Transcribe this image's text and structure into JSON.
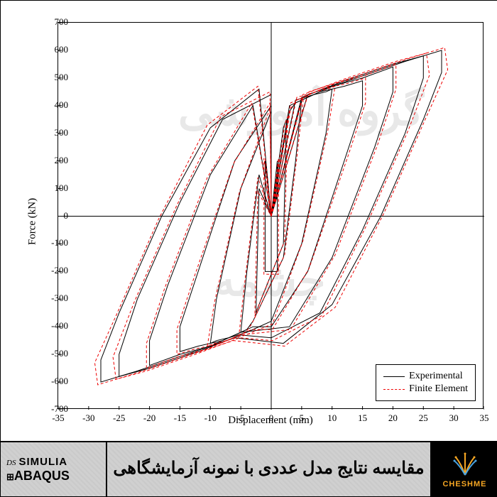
{
  "chart": {
    "type": "line-hysteresis",
    "xlabel": "Displacement (mm)",
    "ylabel": "Force (kN)",
    "xlim": [
      -35,
      35
    ],
    "ylim": [
      -700,
      700
    ],
    "xticks": [
      -35,
      -30,
      -25,
      -20,
      -15,
      -10,
      -5,
      0,
      5,
      10,
      15,
      20,
      25,
      30,
      35
    ],
    "yticks": [
      -700,
      -600,
      -500,
      -400,
      -300,
      -200,
      -100,
      0,
      100,
      200,
      300,
      400,
      500,
      600,
      700
    ],
    "background_color": "#ffffff",
    "border_color": "#000000",
    "tick_fontsize": 13,
    "label_fontsize": 15,
    "series": [
      {
        "name": "Experimental",
        "color": "#000000",
        "style": "solid",
        "width": 1
      },
      {
        "name": "Finite Element",
        "color": "#ee0000",
        "style": "dashed",
        "width": 1
      }
    ],
    "legend_position": "bottom-right",
    "watermark_text1": "گروه آموزشی",
    "watermark_text2": "چشمه",
    "watermark_color": "#e8e8e8",
    "loops_experimental": [
      [
        [
          0,
          0
        ],
        [
          1,
          200
        ],
        [
          1,
          -200
        ],
        [
          -1,
          -200
        ],
        [
          -1,
          200
        ],
        [
          0,
          0
        ]
      ],
      [
        [
          0,
          0
        ],
        [
          2,
          320
        ],
        [
          2.5,
          350
        ],
        [
          2,
          -100
        ],
        [
          -2,
          -320
        ],
        [
          -2.5,
          -350
        ],
        [
          -2,
          100
        ],
        [
          0,
          0
        ]
      ],
      [
        [
          0,
          0
        ],
        [
          3,
          380
        ],
        [
          4,
          410
        ],
        [
          5,
          420
        ],
        [
          4,
          200
        ],
        [
          2,
          -150
        ],
        [
          -3,
          -380
        ],
        [
          -4,
          -410
        ],
        [
          -5,
          -420
        ],
        [
          -4,
          -200
        ],
        [
          -2,
          150
        ],
        [
          0,
          0
        ]
      ],
      [
        [
          0,
          0
        ],
        [
          4,
          420
        ],
        [
          7,
          440
        ],
        [
          9,
          450
        ],
        [
          10,
          460
        ],
        [
          9,
          300
        ],
        [
          5,
          -100
        ],
        [
          0,
          -380
        ],
        [
          -4,
          -420
        ],
        [
          -7,
          -440
        ],
        [
          -9,
          -450
        ],
        [
          -10,
          -460
        ],
        [
          -9,
          -300
        ],
        [
          -5,
          100
        ],
        [
          0,
          380
        ],
        [
          0,
          0
        ]
      ],
      [
        [
          0,
          0
        ],
        [
          3,
          400
        ],
        [
          8,
          450
        ],
        [
          12,
          470
        ],
        [
          15,
          490
        ],
        [
          15,
          400
        ],
        [
          12,
          200
        ],
        [
          6,
          -200
        ],
        [
          0,
          -400
        ],
        [
          -3,
          -400
        ],
        [
          -8,
          -450
        ],
        [
          -12,
          -470
        ],
        [
          -15,
          -490
        ],
        [
          -15,
          -400
        ],
        [
          -12,
          -200
        ],
        [
          -6,
          200
        ],
        [
          0,
          400
        ],
        [
          0,
          0
        ]
      ],
      [
        [
          0,
          0
        ],
        [
          5,
          420
        ],
        [
          10,
          470
        ],
        [
          15,
          500
        ],
        [
          20,
          540
        ],
        [
          20,
          450
        ],
        [
          17,
          250
        ],
        [
          10,
          -150
        ],
        [
          3,
          -400
        ],
        [
          -5,
          -420
        ],
        [
          -10,
          -470
        ],
        [
          -15,
          -500
        ],
        [
          -20,
          -540
        ],
        [
          -20,
          -450
        ],
        [
          -17,
          -250
        ],
        [
          -10,
          150
        ],
        [
          -3,
          400
        ],
        [
          0,
          0
        ]
      ],
      [
        [
          0,
          0
        ],
        [
          5,
          430
        ],
        [
          12,
          490
        ],
        [
          20,
          550
        ],
        [
          25,
          580
        ],
        [
          25,
          500
        ],
        [
          22,
          300
        ],
        [
          15,
          -50
        ],
        [
          8,
          -350
        ],
        [
          0,
          -440
        ],
        [
          -5,
          -430
        ],
        [
          -12,
          -490
        ],
        [
          -20,
          -550
        ],
        [
          -25,
          -580
        ],
        [
          -25,
          -500
        ],
        [
          -22,
          -300
        ],
        [
          -15,
          50
        ],
        [
          -8,
          350
        ],
        [
          0,
          440
        ],
        [
          0,
          0
        ]
      ],
      [
        [
          0,
          0
        ],
        [
          6,
          440
        ],
        [
          14,
          500
        ],
        [
          22,
          560
        ],
        [
          28,
          600
        ],
        [
          28,
          520
        ],
        [
          25,
          350
        ],
        [
          18,
          0
        ],
        [
          10,
          -320
        ],
        [
          2,
          -460
        ],
        [
          -6,
          -440
        ],
        [
          -14,
          -500
        ],
        [
          -22,
          -560
        ],
        [
          -28,
          -600
        ],
        [
          -28,
          -520
        ],
        [
          -25,
          -350
        ],
        [
          -18,
          0
        ],
        [
          -10,
          320
        ],
        [
          -2,
          460
        ],
        [
          0,
          0
        ]
      ]
    ],
    "loops_fe": [
      [
        [
          0,
          0
        ],
        [
          1.2,
          210
        ],
        [
          1.2,
          -210
        ],
        [
          -1.2,
          -210
        ],
        [
          -1.2,
          210
        ],
        [
          0,
          0
        ]
      ],
      [
        [
          0,
          0
        ],
        [
          2.2,
          330
        ],
        [
          2.7,
          360
        ],
        [
          2.2,
          -90
        ],
        [
          -2.2,
          -330
        ],
        [
          -2.7,
          -360
        ],
        [
          -2.2,
          90
        ],
        [
          0,
          0
        ]
      ],
      [
        [
          0,
          0
        ],
        [
          3.2,
          390
        ],
        [
          4.2,
          420
        ],
        [
          5.3,
          430
        ],
        [
          4.2,
          210
        ],
        [
          2.2,
          -140
        ],
        [
          -3.2,
          -390
        ],
        [
          -4.2,
          -420
        ],
        [
          -5.3,
          -430
        ],
        [
          -4.2,
          -210
        ],
        [
          -2.2,
          140
        ],
        [
          0,
          0
        ]
      ],
      [
        [
          0,
          0
        ],
        [
          4.2,
          430
        ],
        [
          7.3,
          450
        ],
        [
          9.3,
          460
        ],
        [
          10.5,
          470
        ],
        [
          9.3,
          310
        ],
        [
          5.2,
          -90
        ],
        [
          0.2,
          -390
        ],
        [
          -4.2,
          -430
        ],
        [
          -7.3,
          -450
        ],
        [
          -9.3,
          -460
        ],
        [
          -10.5,
          -470
        ],
        [
          -9.3,
          -310
        ],
        [
          -5.2,
          90
        ],
        [
          -0.2,
          390
        ],
        [
          0,
          0
        ]
      ],
      [
        [
          0,
          0
        ],
        [
          3.2,
          410
        ],
        [
          8.3,
          460
        ],
        [
          12.5,
          480
        ],
        [
          15.5,
          500
        ],
        [
          15.5,
          410
        ],
        [
          12.5,
          210
        ],
        [
          6.2,
          -190
        ],
        [
          0.2,
          -410
        ],
        [
          -3.2,
          -410
        ],
        [
          -8.3,
          -460
        ],
        [
          -12.5,
          -480
        ],
        [
          -15.5,
          -500
        ],
        [
          -15.5,
          -410
        ],
        [
          -12.5,
          -210
        ],
        [
          -6.2,
          190
        ],
        [
          -0.2,
          410
        ],
        [
          0,
          0
        ]
      ],
      [
        [
          0,
          0
        ],
        [
          5.2,
          430
        ],
        [
          10.5,
          480
        ],
        [
          15.5,
          510
        ],
        [
          20.5,
          550
        ],
        [
          20.5,
          460
        ],
        [
          17.5,
          260
        ],
        [
          10.5,
          -140
        ],
        [
          3.2,
          -410
        ],
        [
          -5.2,
          -430
        ],
        [
          -10.5,
          -480
        ],
        [
          -15.5,
          -510
        ],
        [
          -20.5,
          -550
        ],
        [
          -20.5,
          -460
        ],
        [
          -17.5,
          -260
        ],
        [
          -10.5,
          140
        ],
        [
          -3.2,
          410
        ],
        [
          0,
          0
        ]
      ],
      [
        [
          0,
          0
        ],
        [
          5.2,
          440
        ],
        [
          12.5,
          500
        ],
        [
          20.5,
          560
        ],
        [
          25.5,
          590
        ],
        [
          26,
          510
        ],
        [
          22.5,
          310
        ],
        [
          15.5,
          -40
        ],
        [
          8.3,
          -360
        ],
        [
          0.2,
          -450
        ],
        [
          -5.2,
          -440
        ],
        [
          -12.5,
          -500
        ],
        [
          -20.5,
          -560
        ],
        [
          -25.5,
          -590
        ],
        [
          -26,
          -510
        ],
        [
          -22.5,
          -310
        ],
        [
          -15.5,
          40
        ],
        [
          -8.3,
          360
        ],
        [
          -0.2,
          450
        ],
        [
          0,
          0
        ]
      ],
      [
        [
          0,
          0
        ],
        [
          6.2,
          450
        ],
        [
          14.5,
          510
        ],
        [
          22.5,
          570
        ],
        [
          28.5,
          610
        ],
        [
          29,
          530
        ],
        [
          25.5,
          360
        ],
        [
          18.5,
          10
        ],
        [
          10.5,
          -330
        ],
        [
          2.2,
          -470
        ],
        [
          -6.2,
          -450
        ],
        [
          -14.5,
          -510
        ],
        [
          -22.5,
          -570
        ],
        [
          -28.5,
          -610
        ],
        [
          -29,
          -530
        ],
        [
          -25.5,
          -360
        ],
        [
          -18.5,
          -10
        ],
        [
          -10.5,
          330
        ],
        [
          -2.2,
          470
        ],
        [
          0,
          0
        ]
      ]
    ]
  },
  "footer": {
    "simulia_text": "SIMULIA",
    "abaqus_text": "ABAQUS",
    "ds_text": "DS",
    "title_fa": "مقایسه نتایج مدل عددی با نمونه آزمایشگاهی",
    "cheshme_text": "CHESHME",
    "cheshme_color": "#f5a623"
  }
}
